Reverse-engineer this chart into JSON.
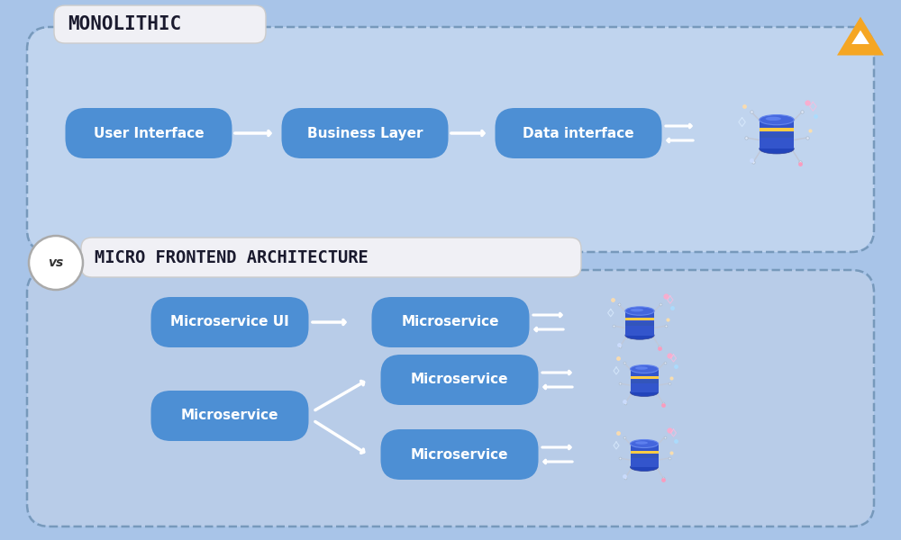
{
  "bg_color": "#a8c4e8",
  "bg_top": "#b8d0f0",
  "bg_bottom": "#9ab8e0",
  "title_monolithic": "MONOLITHIC",
  "title_micro": "MICRO FRONTEND ARCHITECTURE",
  "mono_boxes": [
    "User Interface",
    "Business Layer",
    "Data interface"
  ],
  "micro_row1": [
    "Microservice UI",
    "Microservice"
  ],
  "micro_row2_left": "Microservice",
  "micro_row2_right": [
    "Microservice",
    "Microservice"
  ],
  "box_color": "#4d8fd4",
  "box_text_color": "#ffffff",
  "dashed_border_color": "#7aaadd",
  "arrow_color": "#ffffff",
  "vs_text_color": "#444444",
  "logo_color": "#f5a623",
  "mono_title_bg": "#f5f5f5",
  "mono_title_text": "#1a1a2e",
  "micro_title_bg": "#f5f5f5",
  "micro_title_text": "#1a1a2e",
  "panel_bg_mono": "#c5d8f0",
  "panel_bg_micro": "#b8cce8"
}
